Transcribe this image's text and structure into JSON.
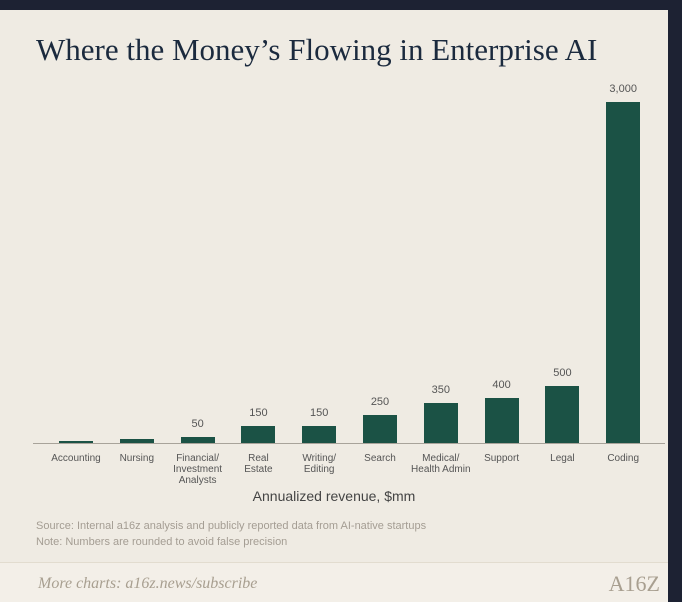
{
  "chart_data": {
    "type": "bar",
    "title": "Where the Money’s Flowing in Enterprise AI",
    "categories": [
      "Accounting",
      "Nursing",
      "Financial/\nInvestment\nAnalysts",
      "Real\nEstate",
      "Writing/\nEditing",
      "Search",
      "Medical/\nHealth Admin",
      "Support",
      "Legal",
      "Coding"
    ],
    "values": [
      15,
      35,
      50,
      150,
      150,
      250,
      350,
      400,
      500,
      3000
    ],
    "value_labels": [
      null,
      null,
      "50",
      "150",
      "150",
      "250",
      "350",
      "400",
      "500",
      "3,000"
    ],
    "color": "#1b5245",
    "x_label": "Annualized revenue, $mm",
    "source": "Source: Internal a16z analysis and publicly reported data from AI-native startups",
    "note": "Note: Numbers are rounded to avoid false precision"
  },
  "footer": {
    "text": "More charts: a16z.news/subscribe",
    "logo": "A16Z"
  }
}
